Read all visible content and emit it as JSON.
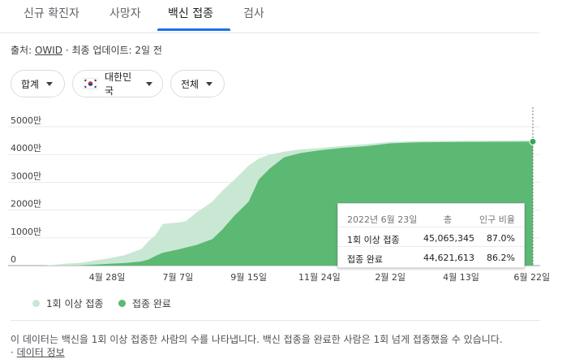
{
  "tabs": [
    {
      "label": "신규 확진자"
    },
    {
      "label": "사망자"
    },
    {
      "label": "백신 접종"
    },
    {
      "label": "검사"
    }
  ],
  "active_tab": "백신 접종",
  "source": {
    "prefix": "출처: ",
    "link": "OWID",
    "suffix": " · 최종 업데이트: 2일 전"
  },
  "filters": {
    "metric": "합계",
    "region": "대한민국",
    "region_flag_icon": "south-korea-flag-icon",
    "scope": "전체"
  },
  "chart_data": {
    "type": "area",
    "y_tick_labels": [
      "0",
      "1000만",
      "2000만",
      "3000만",
      "4000만",
      "5000만"
    ],
    "y_ticks": [
      0,
      10000000,
      20000000,
      30000000,
      40000000,
      50000000
    ],
    "ylim": [
      0,
      50000000
    ],
    "x_tick_labels": [
      "4월 28일",
      "7월 7일",
      "9월 15일",
      "11월 24일",
      "2월 2일",
      "4월 13일",
      "6월 22일"
    ],
    "x_ticks": [
      "2021-04-28",
      "2021-07-07",
      "2021-09-15",
      "2021-11-24",
      "2022-02-02",
      "2022-04-13",
      "2022-06-22"
    ],
    "x": [
      "2021-02-26",
      "2021-03-15",
      "2021-04-01",
      "2021-04-28",
      "2021-05-15",
      "2021-06-01",
      "2021-06-08",
      "2021-06-15",
      "2021-06-22",
      "2021-07-07",
      "2021-07-15",
      "2021-07-25",
      "2021-08-10",
      "2021-08-20",
      "2021-09-01",
      "2021-09-15",
      "2021-09-25",
      "2021-10-06",
      "2021-10-20",
      "2021-11-05",
      "2021-11-24",
      "2021-12-15",
      "2022-01-10",
      "2022-02-02",
      "2022-03-01",
      "2022-04-13",
      "2022-05-10",
      "2022-06-22"
    ],
    "series": [
      {
        "name": "1회 이상 접종",
        "color": "#c9e8d3",
        "values": [
          0,
          600000,
          1000000,
          2500000,
          3700000,
          6000000,
          8800000,
          11000000,
          15000000,
          15500000,
          16000000,
          19000000,
          23000000,
          27000000,
          31000000,
          36000000,
          38500000,
          40000000,
          41000000,
          41800000,
          42300000,
          43000000,
          43800000,
          44500000,
          44800000,
          44950000,
          45000000,
          45065345
        ]
      },
      {
        "name": "접종 완료",
        "color": "#5bb974",
        "values": [
          0,
          0,
          100000,
          600000,
          900000,
          1500000,
          2200000,
          3500000,
          4600000,
          5800000,
          6500000,
          7400000,
          9500000,
          13000000,
          18000000,
          23000000,
          31000000,
          35000000,
          39000000,
          40500000,
          41500000,
          42300000,
          43000000,
          44000000,
          44400000,
          44500000,
          44550000,
          44621613
        ]
      }
    ],
    "marker_date": "2022-06-23",
    "grid": true
  },
  "tooltip": {
    "date": "2022년 6월 23일",
    "col_total": "총",
    "col_ratio": "인구 비율",
    "rows": [
      {
        "label": "1회 이상 접종",
        "total": "45,065,345",
        "ratio": "87.0%"
      },
      {
        "label": "접종 완료",
        "total": "44,621,613",
        "ratio": "86.2%"
      }
    ]
  },
  "legend": [
    {
      "label": "1회 이상 접종",
      "color": "#c9e8d3"
    },
    {
      "label": "접종 완료",
      "color": "#5bb974"
    }
  ],
  "footnote": {
    "text": "이 데이터는 백신을 1회 이상 접종한 사람의 수를 나타냅니다. 백신 접종을 완료한 사람은 1회 넘게 접종했을 수 있습니다.",
    "separator": "·",
    "link": "데이터 정보"
  }
}
